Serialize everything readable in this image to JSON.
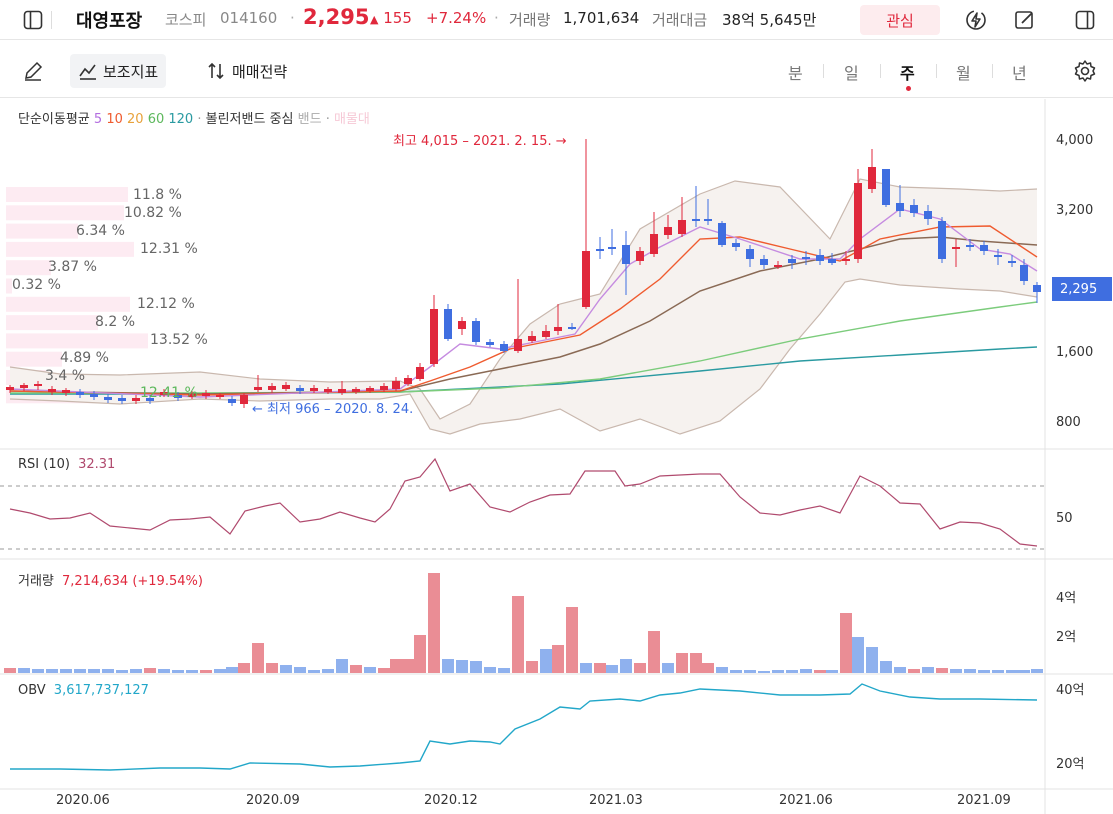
{
  "header": {
    "stock_name": "대영포장",
    "market": "코스피",
    "code": "014160",
    "price": "2,295",
    "change_arrow": "▲",
    "change": "155",
    "change_pct": "+7.24%",
    "volume_label": "거래량",
    "volume": "1,701,634",
    "amount_label": "거래대금",
    "amount": "38억 5,645만",
    "watch_label": "관심"
  },
  "toolbar": {
    "indicators_label": "보조지표",
    "strategy_label": "매매전략",
    "periods": [
      "분",
      "일",
      "주",
      "월",
      "년"
    ],
    "active_period": "주"
  },
  "legend": {
    "ma_label": "단순이동평균",
    "ma_periods": [
      "5",
      "10",
      "20",
      "60",
      "120"
    ],
    "bb_label": "볼린저밴드",
    "bb_center": "중심",
    "bb_band": "밴드",
    "volume_profile": "매물대"
  },
  "colors": {
    "up": "#e0283c",
    "down": "#3f6ee0",
    "ma5": "#b36ee0",
    "ma10": "#ef5b2f",
    "ma20": "#e8a23b",
    "ma60": "#5cb85c",
    "ma120": "#2a9aa1",
    "rsi": "#b04a6e",
    "obv": "#22a7c9"
  },
  "annotations": {
    "high": "최고 4,015 – 2021. 2. 15.",
    "low": "최저 966 – 2020. 8. 24."
  },
  "volume_profile": [
    "11.8 %",
    "10.82 %",
    "6.34 %",
    "12.31 %",
    "3.87 %",
    "0.32 %",
    "12.12 %",
    "8.2 %",
    "13.52 %",
    "4.89 %",
    "3.4 %",
    "12.41 %"
  ],
  "price_axis": [
    "4,000",
    "3,200",
    "2,295",
    "1,600",
    "800"
  ],
  "current_price_tag": "2,295",
  "rsi": {
    "label": "RSI (10)",
    "value": "32.31",
    "axis": "50"
  },
  "volume_panel": {
    "label": "거래량",
    "value": "7,214,634 (+19.54%)",
    "axis": [
      "4억",
      "2억"
    ]
  },
  "obv_panel": {
    "label": "OBV",
    "value": "3,617,737,127",
    "axis": [
      "40억",
      "20억"
    ]
  },
  "dates": [
    "2020.06",
    "2020.09",
    "2020.12",
    "2021.03",
    "2021.06",
    "2021.09"
  ],
  "chart_data": {
    "type": "candlestick",
    "x": [
      "2020-05",
      "2020-07",
      "2020-08-24",
      "2020-11",
      "2020-12",
      "2021-02-15",
      "2021-04",
      "2021-06",
      "2021-07",
      "2021-09"
    ],
    "close_approx": [
      1150,
      1060,
      1000,
      1080,
      1700,
      2200,
      2900,
      2450,
      3200,
      2295
    ],
    "high": 4015,
    "low": 966,
    "ylim": [
      500,
      4200
    ]
  }
}
